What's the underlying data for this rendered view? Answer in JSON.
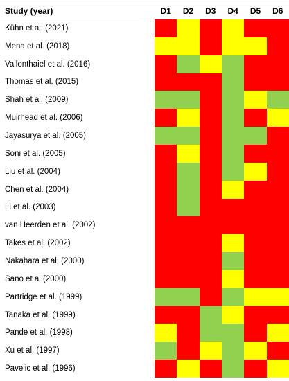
{
  "header": {
    "study_label": "Study (year)",
    "domains": [
      "D1",
      "D2",
      "D3",
      "D4",
      "D5",
      "D6"
    ]
  },
  "colors": {
    "red": "#ff0000",
    "yellow": "#ffff00",
    "green": "#92d050"
  },
  "rows": [
    {
      "study": "Kühn et al. (2021)",
      "ratings": [
        "red",
        "yellow",
        "red",
        "yellow",
        "red",
        "red"
      ]
    },
    {
      "study": "Mena et al. (2018)",
      "ratings": [
        "yellow",
        "yellow",
        "red",
        "yellow",
        "yellow",
        "red"
      ]
    },
    {
      "study": "Vallonthaiel et al. (2016)",
      "ratings": [
        "red",
        "green",
        "yellow",
        "green",
        "red",
        "red"
      ]
    },
    {
      "study": "Thomas et al. (2015)",
      "ratings": [
        "red",
        "red",
        "red",
        "green",
        "red",
        "red"
      ]
    },
    {
      "study": "Shah et al. (2009)",
      "ratings": [
        "green",
        "green",
        "red",
        "green",
        "yellow",
        "green"
      ]
    },
    {
      "study": "Muirhead et al. (2006)",
      "ratings": [
        "red",
        "yellow",
        "red",
        "green",
        "red",
        "yellow"
      ]
    },
    {
      "study": "Jayasurya et al. (2005)",
      "ratings": [
        "green",
        "green",
        "red",
        "green",
        "green",
        "red"
      ]
    },
    {
      "study": "Soni et al. (2005)",
      "ratings": [
        "red",
        "yellow",
        "red",
        "green",
        "red",
        "red"
      ]
    },
    {
      "study": "Liu et al. (2004)",
      "ratings": [
        "red",
        "green",
        "red",
        "green",
        "yellow",
        "red"
      ]
    },
    {
      "study": "Chen et al. (2004)",
      "ratings": [
        "red",
        "green",
        "red",
        "yellow",
        "red",
        "red"
      ]
    },
    {
      "study": "Li et al. (2003)",
      "ratings": [
        "red",
        "green",
        "red",
        "red",
        "red",
        "red"
      ]
    },
    {
      "study": "van Heerden et al. (2002)",
      "ratings": [
        "red",
        "red",
        "red",
        "red",
        "red",
        "red"
      ]
    },
    {
      "study": "Takes et al. (2002)",
      "ratings": [
        "red",
        "red",
        "red",
        "yellow",
        "red",
        "red"
      ]
    },
    {
      "study": "Nakahara et al. (2000)",
      "ratings": [
        "red",
        "red",
        "red",
        "green",
        "red",
        "red"
      ]
    },
    {
      "study": "Sano et al.(2000)",
      "ratings": [
        "red",
        "red",
        "red",
        "yellow",
        "red",
        "red"
      ]
    },
    {
      "study": "Partridge et al. (1999)",
      "ratings": [
        "green",
        "green",
        "red",
        "green",
        "yellow",
        "yellow"
      ]
    },
    {
      "study": "Tanaka et al. (1999)",
      "ratings": [
        "red",
        "red",
        "green",
        "yellow",
        "red",
        "red"
      ]
    },
    {
      "study": "Pande et al. (1998)",
      "ratings": [
        "yellow",
        "red",
        "green",
        "green",
        "red",
        "yellow"
      ]
    },
    {
      "study": "Xu et al. (1997)",
      "ratings": [
        "green",
        "red",
        "yellow",
        "green",
        "yellow",
        "red"
      ]
    },
    {
      "study": "Pavelic et al. (1996)",
      "ratings": [
        "red",
        "yellow",
        "red",
        "green",
        "red",
        "yellow"
      ]
    }
  ]
}
